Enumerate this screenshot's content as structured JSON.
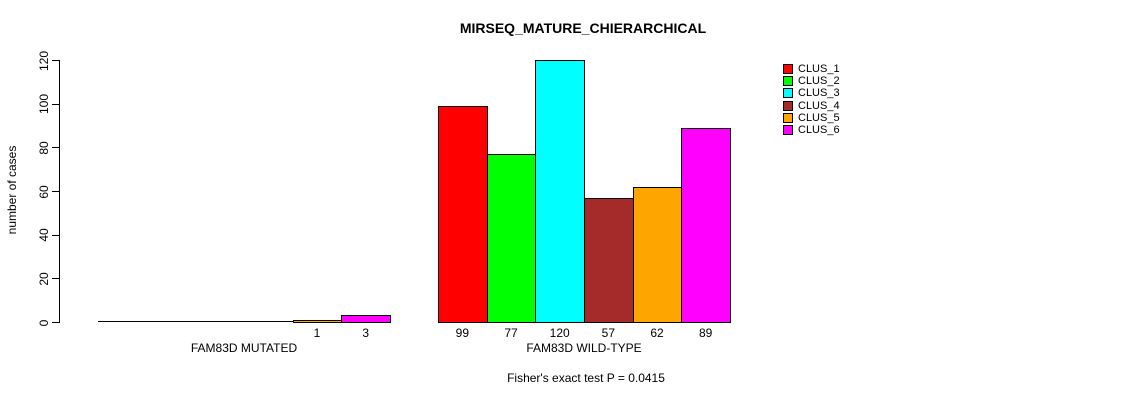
{
  "chart_data": {
    "type": "bar",
    "title": "MIRSEQ_MATURE_CHIERARCHICAL",
    "ylabel": "number of cases",
    "subtitle": "Fisher's exact test P = 0.0415",
    "ylim": [
      0,
      120
    ],
    "yticks": [
      0,
      20,
      40,
      60,
      80,
      100,
      120
    ],
    "grid": false,
    "legend_position": "top-right",
    "series": [
      {
        "name": "CLUS_1",
        "color": "#FF0000"
      },
      {
        "name": "CLUS_2",
        "color": "#00FF00"
      },
      {
        "name": "CLUS_3",
        "color": "#00FFFF"
      },
      {
        "name": "CLUS_4",
        "color": "#A52A2A"
      },
      {
        "name": "CLUS_5",
        "color": "#FFA500"
      },
      {
        "name": "CLUS_6",
        "color": "#FF00FF"
      }
    ],
    "groups": [
      {
        "label": "FAM83D MUTATED",
        "values": [
          0,
          0,
          0,
          0,
          1,
          3
        ],
        "bar_labels": [
          "",
          "",
          "",
          "",
          "1",
          "3"
        ]
      },
      {
        "label": "FAM83D WILD-TYPE",
        "values": [
          99,
          77,
          120,
          57,
          62,
          89
        ],
        "bar_labels": [
          "99",
          "77",
          "120",
          "57",
          "62",
          "89"
        ]
      }
    ]
  }
}
